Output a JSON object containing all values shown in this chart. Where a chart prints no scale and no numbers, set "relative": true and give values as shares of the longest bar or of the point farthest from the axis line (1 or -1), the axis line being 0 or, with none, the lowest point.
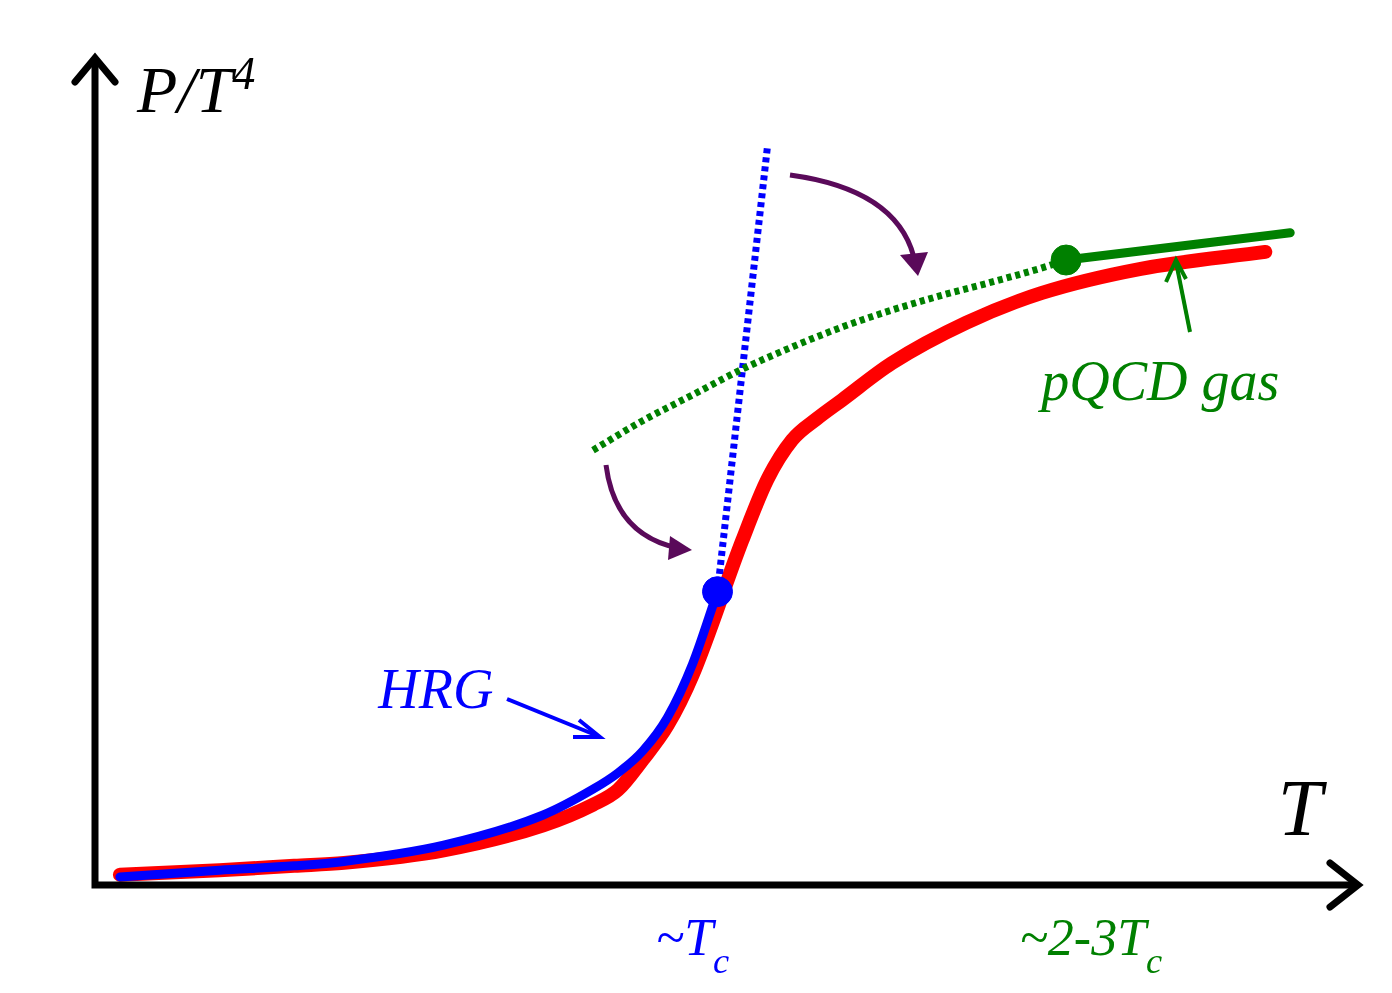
{
  "chart_data": {
    "type": "line",
    "relative": true,
    "ylabel": "P/T$^{4}$",
    "xlabel": "T",
    "categories": [
      null,
      null,
      null,
      null,
      null,
      null,
      null,
      null,
      null,
      null,
      null,
      null,
      null,
      null,
      null,
      null,
      null,
      null,
      null,
      null,
      null,
      null,
      null,
      null,
      "~T$_{c}$",
      null,
      null,
      null,
      null,
      null,
      null,
      null,
      null,
      null,
      null,
      null,
      null,
      null,
      null,
      null,
      "~2-3T$_{c}$",
      null,
      null,
      null,
      null,
      null,
      null,
      null,
      null,
      null,
      null
    ],
    "series": [
      {
        "color": "#ff0000",
        "line_style": "solid",
        "values": [
          null,
          0.014,
          null,
          null,
          null,
          0.02,
          null,
          null,
          0.026,
          null,
          0.03,
          null,
          null,
          null,
          0.047,
          null,
          null,
          null,
          0.081,
          null,
          0.109,
          0.129,
          0.17,
          0.217,
          0.285,
          null,
          0.468,
          0.55,
          0.604,
          0.633,
          0.658,
          null,
          0.708,
          null,
          null,
          0.763,
          null,
          null,
          0.803,
          null,
          null,
          null,
          0.836,
          null,
          null,
          null,
          null,
          0.859,
          null,
          null,
          null
        ]
      },
      {
        "color": "#0000ff",
        "line_style": "solid",
        "values": [
          null,
          0.011,
          null,
          null,
          null,
          0.02,
          null,
          null,
          0.026,
          null,
          0.032,
          null,
          null,
          null,
          0.054,
          null,
          null,
          null,
          0.095,
          null,
          0.13,
          0.152,
          0.182,
          0.228,
          0.3,
          0.398,
          null,
          null,
          null,
          null,
          null,
          null,
          null,
          null,
          null,
          null,
          null,
          null,
          null,
          null,
          null,
          null,
          null,
          null,
          null,
          null,
          null,
          null,
          null,
          null,
          null
        ]
      },
      {
        "color": "#0000ff",
        "line_style": "dotted",
        "values": [
          null,
          null,
          null,
          null,
          null,
          null,
          null,
          null,
          null,
          null,
          null,
          null,
          null,
          null,
          null,
          null,
          null,
          null,
          null,
          null,
          null,
          null,
          null,
          null,
          null,
          0.398,
          null,
          1,
          null,
          null,
          null,
          null,
          null,
          null,
          null,
          null,
          null,
          null,
          null,
          null,
          null,
          null,
          null,
          null,
          null,
          null,
          null,
          null,
          null,
          null,
          null
        ]
      },
      {
        "color": "#008000",
        "line_style": "dotted",
        "values": [
          null,
          null,
          null,
          null,
          null,
          null,
          null,
          null,
          null,
          null,
          null,
          null,
          null,
          null,
          null,
          null,
          null,
          null,
          null,
          null,
          0.59,
          null,
          0.63,
          null,
          0.665,
          null,
          0.7,
          null,
          0.73,
          null,
          0.757,
          null,
          0.78,
          null,
          0.8,
          null,
          0.818,
          null,
          0.837,
          0.848,
          null,
          null,
          null,
          null,
          null,
          null,
          null,
          null,
          null,
          null,
          null
        ]
      },
      {
        "color": "#008000",
        "line_style": "solid",
        "values": [
          null,
          null,
          null,
          null,
          null,
          null,
          null,
          null,
          null,
          null,
          null,
          null,
          null,
          null,
          null,
          null,
          null,
          null,
          null,
          null,
          null,
          null,
          null,
          null,
          null,
          null,
          null,
          null,
          null,
          null,
          null,
          null,
          null,
          null,
          null,
          null,
          null,
          null,
          null,
          0.848,
          null,
          null,
          null,
          null,
          null,
          null,
          null,
          null,
          0.885,
          null,
          null
        ]
      },
      {
        "type": "scatter",
        "color": "#0000ff",
        "marker": "circle",
        "values": [
          null,
          null,
          null,
          null,
          null,
          null,
          null,
          null,
          null,
          null,
          null,
          null,
          null,
          null,
          null,
          null,
          null,
          null,
          null,
          null,
          null,
          null,
          null,
          null,
          null,
          0.398,
          null,
          null,
          null,
          null,
          null,
          null,
          null,
          null,
          null,
          null,
          null,
          null,
          null,
          null,
          null,
          null,
          null,
          null,
          null,
          null,
          null,
          null,
          null,
          null,
          null
        ]
      },
      {
        "type": "scatter",
        "color": "#008000",
        "marker": "circle",
        "values": [
          null,
          null,
          null,
          null,
          null,
          null,
          null,
          null,
          null,
          null,
          null,
          null,
          null,
          null,
          null,
          null,
          null,
          null,
          null,
          null,
          null,
          null,
          null,
          null,
          null,
          null,
          null,
          null,
          null,
          null,
          null,
          null,
          null,
          null,
          null,
          null,
          null,
          null,
          null,
          0.848,
          null,
          null,
          null,
          null,
          null,
          null,
          null,
          null,
          null,
          null,
          null
        ]
      }
    ],
    "annotations": [
      "HRG",
      "pQCD gas"
    ]
  }
}
